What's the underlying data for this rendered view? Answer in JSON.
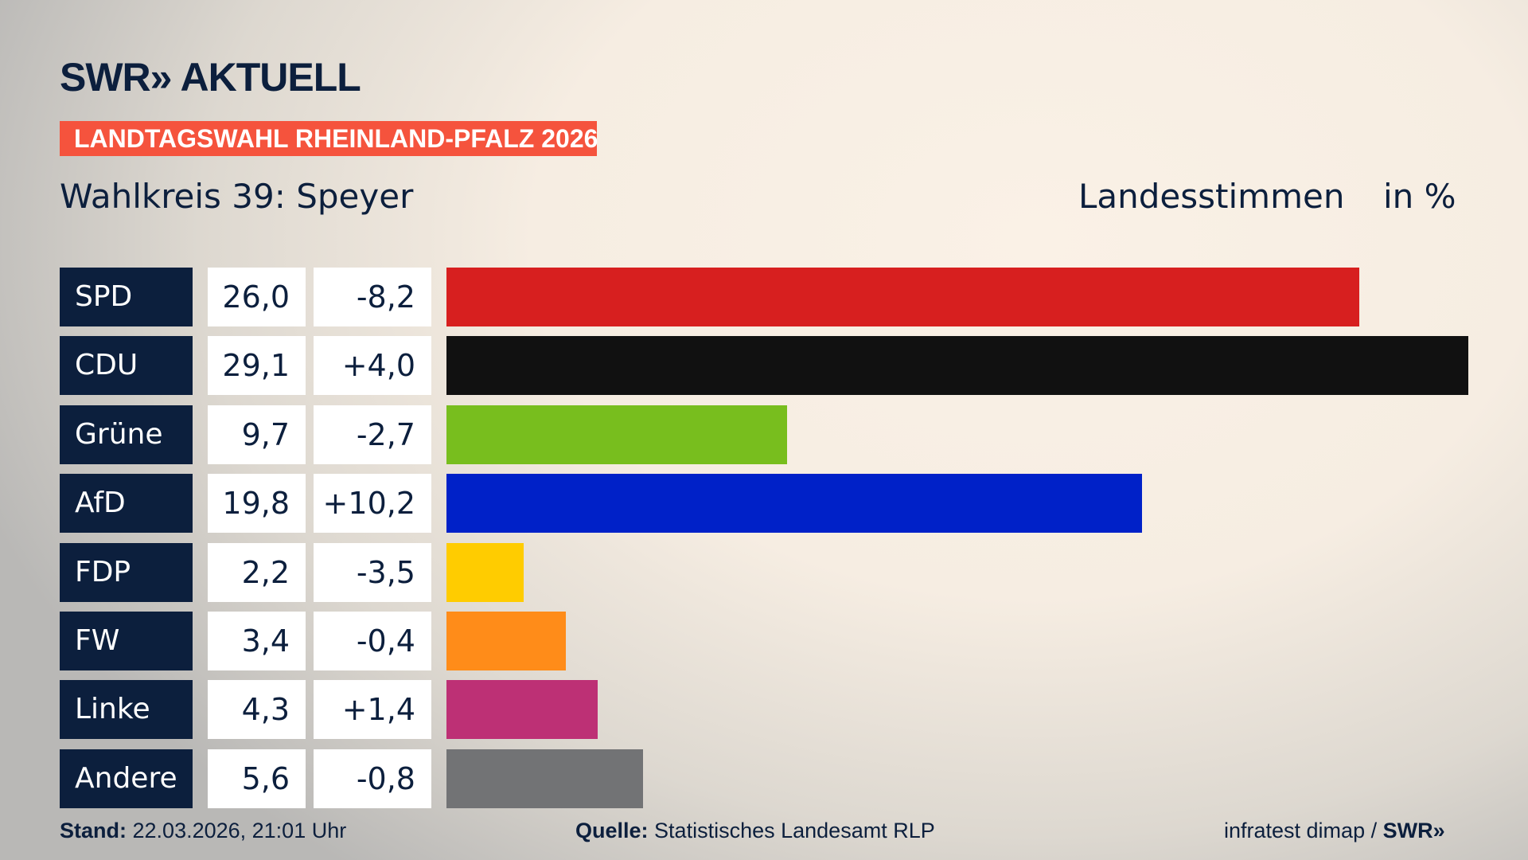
{
  "header": {
    "logo": "SWR» AKTUELL",
    "banner": "LANDTAGSWAHL RHEINLAND-PFALZ 2026",
    "subtitle": "Wahlkreis 39: Speyer",
    "vote_type": "Landesstimmen",
    "unit": "in %"
  },
  "chart_data": {
    "type": "bar",
    "orientation": "horizontal",
    "categories": [
      "SPD",
      "CDU",
      "Grüne",
      "AfD",
      "FDP",
      "FW",
      "Linke",
      "Andere"
    ],
    "values": [
      26.0,
      29.1,
      9.7,
      19.8,
      2.2,
      3.4,
      4.3,
      5.6
    ],
    "value_labels": [
      "26,0",
      "29,1",
      "9,7",
      "19,8",
      "2,2",
      "3,4",
      "4,3",
      "5,6"
    ],
    "changes": [
      -8.2,
      4.0,
      -2.7,
      10.2,
      -3.5,
      -0.4,
      1.4,
      -0.8
    ],
    "change_labels": [
      "-8,2",
      "+4,0",
      "-2,7",
      "+10,2",
      "-3,5",
      "-0,4",
      "+1,4",
      "-0,8"
    ],
    "colors": [
      "#d71f1f",
      "#111111",
      "#78be1e",
      "#0021c8",
      "#ffcc00",
      "#ff8c19",
      "#bd3075",
      "#727375"
    ],
    "xlim": [
      0,
      29.1
    ]
  },
  "footer": {
    "stand_label": "Stand:",
    "stand_value": "22.03.2026, 21:01 Uhr",
    "source_label": "Quelle:",
    "source_value": "Statistisches Landesamt RLP",
    "credit": "infratest dimap / ",
    "credit_logo": "SWR»"
  },
  "colors": {
    "navy": "#0c1f3d",
    "banner": "#f5533d"
  }
}
